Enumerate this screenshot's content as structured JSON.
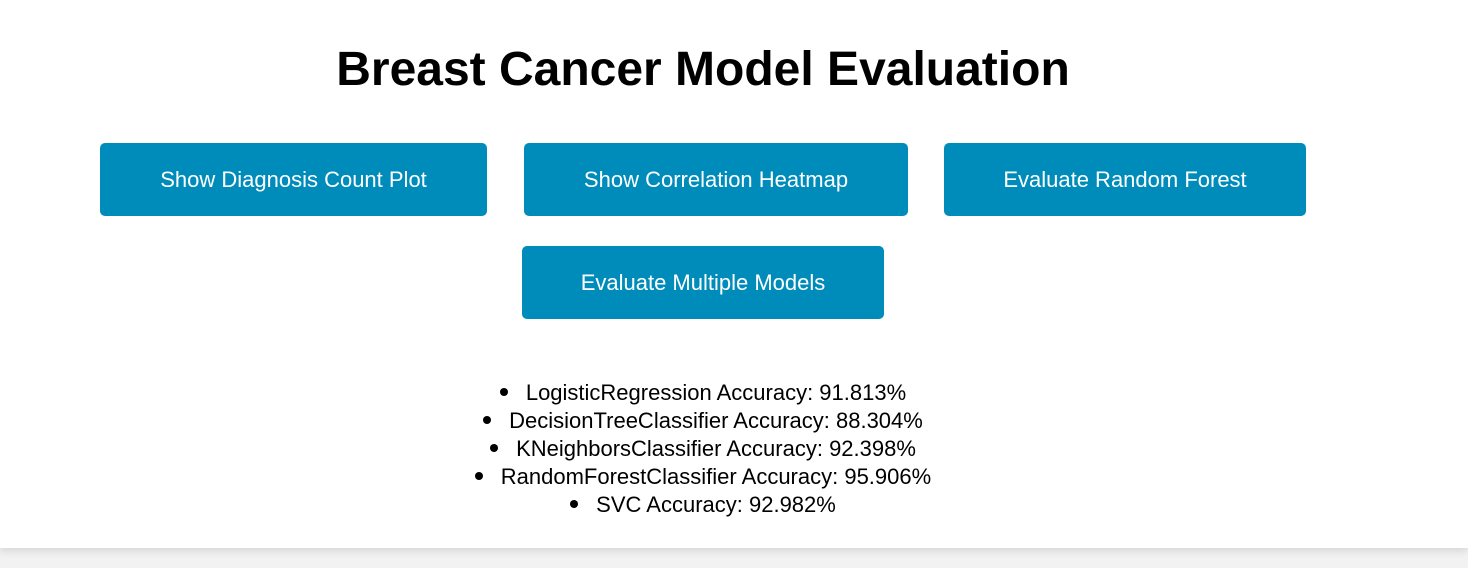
{
  "page": {
    "title": "Breast Cancer Model Evaluation"
  },
  "buttons": {
    "count_plot": "Show Diagnosis Count Plot",
    "heatmap": "Show Correlation Heatmap",
    "random_forest": "Evaluate Random Forest",
    "multiple_models": "Evaluate Multiple Models"
  },
  "results": [
    {
      "text": "LogisticRegression Accuracy: 91.813%"
    },
    {
      "text": "DecisionTreeClassifier Accuracy: 88.304%"
    },
    {
      "text": "KNeighborsClassifier Accuracy: 92.398%"
    },
    {
      "text": "RandomForestClassifier Accuracy: 95.906%"
    },
    {
      "text": "SVC Accuracy: 92.982%"
    }
  ],
  "colors": {
    "button_bg": "#008cba",
    "button_text": "#ffffff",
    "page_bg": "#ffffff"
  }
}
